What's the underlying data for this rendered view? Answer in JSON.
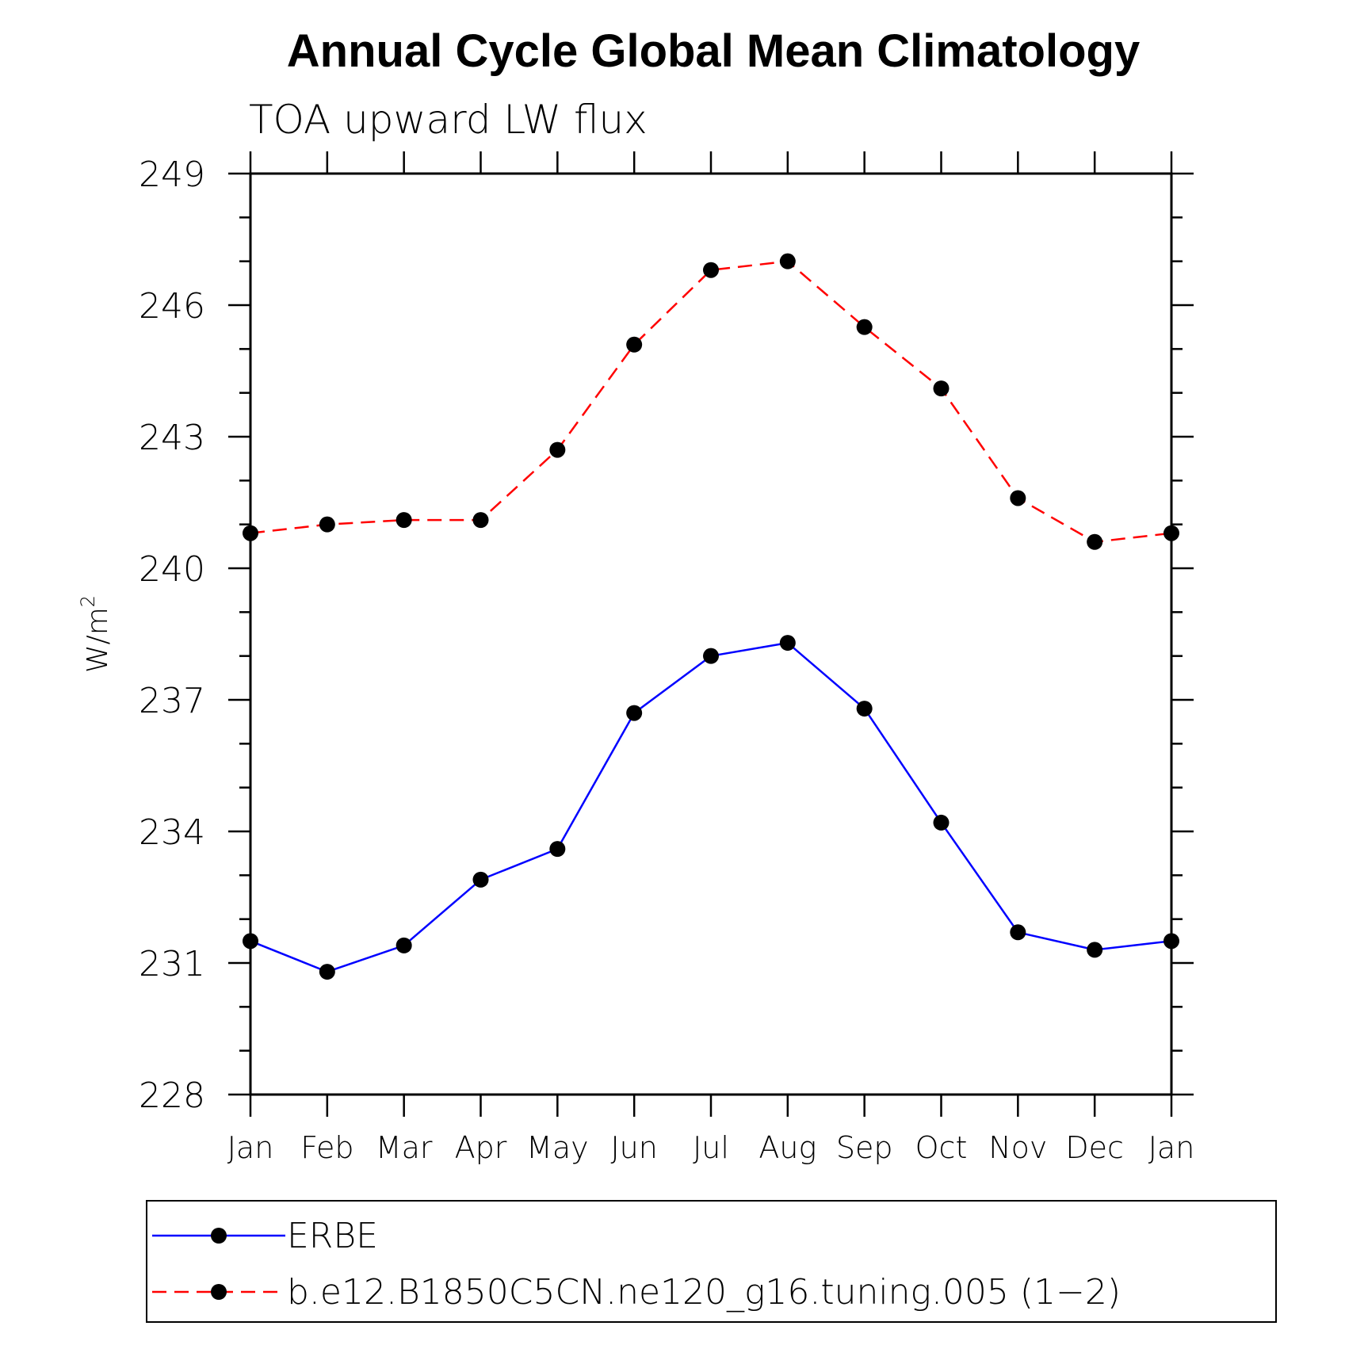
{
  "chart_data": {
    "type": "line",
    "title": "Annual Cycle Global Mean Climatology",
    "subtitle": "TOA upward LW flux",
    "ylabel": "W/m",
    "ylabel_sup": "2",
    "xlabel": "",
    "categories": [
      "Jan",
      "Feb",
      "Mar",
      "Apr",
      "May",
      "Jun",
      "Jul",
      "Aug",
      "Sep",
      "Oct",
      "Nov",
      "Dec",
      "Jan"
    ],
    "ylim": [
      228,
      249
    ],
    "yticks": [
      "228",
      "231",
      "234",
      "237",
      "240",
      "243",
      "246",
      "249"
    ],
    "grid": false,
    "legend_position": "bottom",
    "series": [
      {
        "name": "ERBE",
        "color": "#0000ff",
        "style": "solid",
        "values": [
          231.5,
          230.8,
          231.4,
          232.9,
          233.6,
          236.7,
          238.0,
          238.3,
          236.8,
          234.2,
          231.7,
          231.3,
          231.5
        ]
      },
      {
        "name": "b.e12.B1850C5CN.ne120_g16.tuning.005 (1−2)",
        "color": "#ff0000",
        "style": "dashed",
        "values": [
          240.8,
          241.0,
          241.1,
          241.1,
          242.7,
          245.1,
          246.8,
          247.0,
          245.5,
          244.1,
          241.6,
          240.6,
          240.8
        ]
      }
    ]
  }
}
